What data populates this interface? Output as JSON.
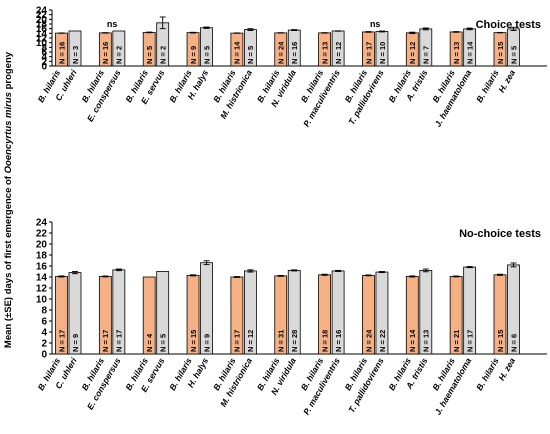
{
  "chart_data": {
    "type": "bar",
    "ylabel_parts": [
      "Mean (±SE) days of first emergence of ",
      "Ooencyrtus mirus",
      " progeny"
    ],
    "ylim": [
      0,
      24
    ],
    "yticks": [
      0,
      2,
      4,
      6,
      8,
      10,
      12,
      14,
      16,
      18,
      20,
      22,
      24
    ],
    "colors": {
      "hilaris": "#f5b183",
      "other": "#d9d9d9",
      "edge": "#000000"
    },
    "panels": [
      {
        "title": "Choice tests",
        "pairs": [
          {
            "host": "C. uhleri",
            "hilaris": 14.1,
            "hilaris_se": 0.08,
            "hilaris_n": "N = 16",
            "other": 15.0,
            "other_se": 0.0,
            "other_n": "N = 3",
            "sig": ""
          },
          {
            "host": "E. conspersus",
            "hilaris": 14.2,
            "hilaris_se": 0.1,
            "hilaris_n": "N = 16",
            "other": 15.0,
            "other_se": 0.0,
            "other_n": "N = 2",
            "sig": "ns"
          },
          {
            "host": "E. servus",
            "hilaris": 14.4,
            "hilaris_se": 0.15,
            "hilaris_n": "N = 5",
            "other": 18.5,
            "other_se": 2.5,
            "other_n": "N = 2",
            "sig": ""
          },
          {
            "host": "H. halys",
            "hilaris": 14.3,
            "hilaris_se": 0.15,
            "hilaris_n": "N = 9",
            "other": 16.4,
            "other_se": 0.3,
            "other_n": "N = 5",
            "sig": ""
          },
          {
            "host": "M. histrionica",
            "hilaris": 14.1,
            "hilaris_se": 0.08,
            "hilaris_n": "N = 14",
            "other": 15.6,
            "other_se": 0.4,
            "other_n": "N = 5",
            "sig": ""
          },
          {
            "host": "N. viridula",
            "hilaris": 14.2,
            "hilaris_se": 0.08,
            "hilaris_n": "N = 24",
            "other": 15.4,
            "other_se": 0.2,
            "other_n": "N = 16",
            "sig": ""
          },
          {
            "host": "P. maculiventris",
            "hilaris": 14.2,
            "hilaris_se": 0.1,
            "hilaris_n": "N = 13",
            "other": 15.0,
            "other_se": 0.08,
            "other_n": "N = 12",
            "sig": ""
          },
          {
            "host": "T. pallidovirens",
            "hilaris": 14.6,
            "hilaris_se": 0.15,
            "hilaris_n": "N = 17",
            "other": 14.8,
            "other_se": 0.2,
            "other_n": "N = 10",
            "sig": "ns"
          },
          {
            "host": "A. tristis",
            "hilaris": 14.2,
            "hilaris_se": 0.3,
            "hilaris_n": "N = 12",
            "other": 15.9,
            "other_se": 0.4,
            "other_n": "N = 7",
            "sig": ""
          },
          {
            "host": "J. haematoloma",
            "hilaris": 14.6,
            "hilaris_se": 0.15,
            "hilaris_n": "N = 13",
            "other": 15.9,
            "other_se": 0.35,
            "other_n": "N = 14",
            "sig": ""
          },
          {
            "host": "H. zea",
            "hilaris": 14.3,
            "hilaris_se": 0.1,
            "hilaris_n": "N = 15",
            "other": 15.9,
            "other_se": 0.7,
            "other_n": "N = 5",
            "sig": ""
          }
        ]
      },
      {
        "title": "No-choice tests",
        "pairs": [
          {
            "host": "C. uhleri",
            "hilaris": 14.1,
            "hilaris_se": 0.1,
            "hilaris_n": "N = 17",
            "other": 14.8,
            "other_se": 0.2,
            "other_n": "N = 9",
            "sig": ""
          },
          {
            "host": "E. conspersus",
            "hilaris": 14.1,
            "hilaris_se": 0.08,
            "hilaris_n": "N = 17",
            "other": 15.3,
            "other_se": 0.15,
            "other_n": "N = 17",
            "sig": ""
          },
          {
            "host": "E. servus",
            "hilaris": 14.0,
            "hilaris_se": 0.0,
            "hilaris_n": "N = 4",
            "other": 15.0,
            "other_se": 0.0,
            "other_n": "N = 5",
            "sig": ""
          },
          {
            "host": "H. halys",
            "hilaris": 14.3,
            "hilaris_se": 0.1,
            "hilaris_n": "N = 15",
            "other": 16.6,
            "other_se": 0.35,
            "other_n": "N = 9",
            "sig": ""
          },
          {
            "host": "M. histrionica",
            "hilaris": 14.0,
            "hilaris_se": 0.08,
            "hilaris_n": "N = 17",
            "other": 15.1,
            "other_se": 0.2,
            "other_n": "N = 12",
            "sig": ""
          },
          {
            "host": "N. viridula",
            "hilaris": 14.2,
            "hilaris_se": 0.08,
            "hilaris_n": "N = 31",
            "other": 15.2,
            "other_se": 0.1,
            "other_n": "N = 28",
            "sig": ""
          },
          {
            "host": "P. maculiventris",
            "hilaris": 14.4,
            "hilaris_se": 0.1,
            "hilaris_n": "N = 18",
            "other": 15.1,
            "other_se": 0.1,
            "other_n": "N = 16",
            "sig": ""
          },
          {
            "host": "T. pallidovirens",
            "hilaris": 14.3,
            "hilaris_se": 0.08,
            "hilaris_n": "N = 24",
            "other": 14.9,
            "other_se": 0.1,
            "other_n": "N = 22",
            "sig": ""
          },
          {
            "host": "A. tristis",
            "hilaris": 14.1,
            "hilaris_se": 0.1,
            "hilaris_n": "N = 14",
            "other": 15.2,
            "other_se": 0.25,
            "other_n": "N = 13",
            "sig": ""
          },
          {
            "host": "J. haematoloma",
            "hilaris": 14.1,
            "hilaris_se": 0.08,
            "hilaris_n": "N = 21",
            "other": 15.8,
            "other_se": 0.1,
            "other_n": "N = 17",
            "sig": ""
          },
          {
            "host": "H. zea",
            "hilaris": 14.4,
            "hilaris_se": 0.1,
            "hilaris_n": "N = 15",
            "other": 16.2,
            "other_se": 0.35,
            "other_n": "N = 6",
            "sig": ""
          }
        ]
      }
    ],
    "focal_species": "B. hilaris"
  }
}
